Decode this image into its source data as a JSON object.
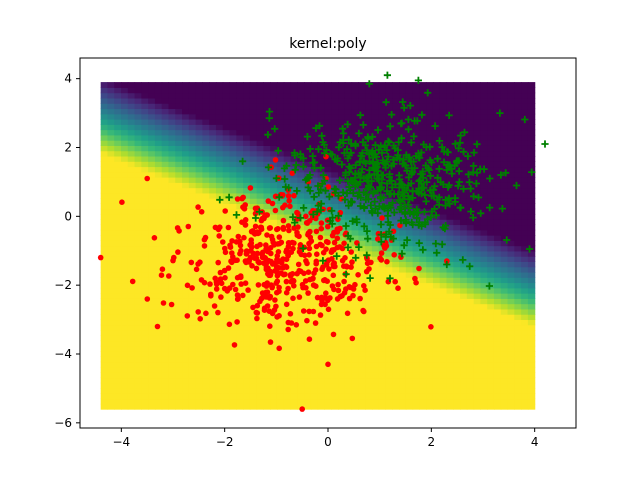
{
  "chart_data": {
    "type": "scatter",
    "title": "kernel:poly",
    "xlabel": "",
    "ylabel": "",
    "xlim": [
      -4.8,
      4.8
    ],
    "ylim": [
      -6.15,
      4.6
    ],
    "x_ticks": [
      -4,
      -2,
      0,
      2,
      4
    ],
    "y_ticks": [
      -6,
      -4,
      -2,
      0,
      2,
      4
    ],
    "grid": false,
    "decision_surface": {
      "kind": "heatmap",
      "colormap": "viridis",
      "x_range": [
        -4.4,
        4.0
      ],
      "y_range": [
        -5.6,
        3.9
      ],
      "boundary": "0.6*x + y + 0.8 = 0",
      "transition_width": 2.2
    },
    "series": [
      {
        "marker": "circle",
        "color": "#ff0000",
        "center": [
          -0.9,
          -1.3
        ],
        "spread": [
          1.0,
          1.0
        ],
        "count": 500,
        "extremes": [
          [
            -4.4,
            -1.2
          ],
          [
            -0.5,
            -5.6
          ],
          [
            -3.5,
            1.1
          ],
          [
            -3.3,
            -3.2
          ],
          [
            0.0,
            -4.3
          ],
          [
            1.3,
            -1.9
          ],
          [
            2.3,
            -1.3
          ]
        ]
      },
      {
        "marker": "plus",
        "color": "#008000",
        "center": [
          1.1,
          1.0
        ],
        "spread": [
          1.0,
          1.0
        ],
        "count": 500,
        "extremes": [
          [
            4.2,
            2.1
          ],
          [
            1.15,
            4.1
          ],
          [
            1.75,
            3.95
          ],
          [
            0.8,
            3.85
          ],
          [
            3.9,
            -0.95
          ],
          [
            -1.4,
            -0.05
          ],
          [
            1.2,
            -1.8
          ],
          [
            2.3,
            -1.4
          ]
        ]
      }
    ]
  }
}
